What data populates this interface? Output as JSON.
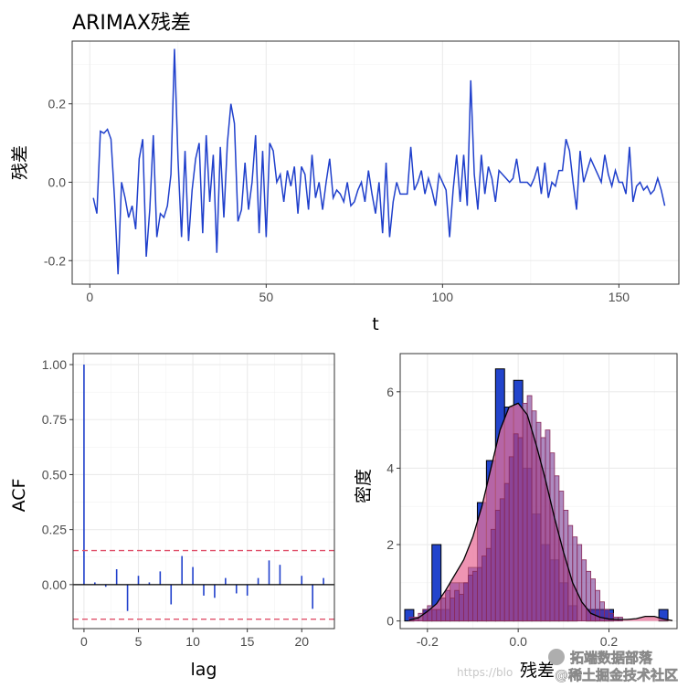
{
  "chart_data": [
    {
      "type": "line",
      "title": "ARIMAX残差",
      "xlabel": "t",
      "ylabel": "残差",
      "xlim": [
        -5,
        167
      ],
      "ylim": [
        -0.26,
        0.36
      ],
      "xticks": [
        0,
        50,
        100,
        150
      ],
      "yticks": [
        -0.2,
        0.0,
        0.2
      ],
      "ytick_labels": [
        "-0.2",
        "0.0",
        "0.2"
      ],
      "grid": true,
      "color": "#2040cc",
      "y": [
        -0.04,
        -0.08,
        0.13,
        0.125,
        0.135,
        0.11,
        -0.04,
        -0.235,
        0.0,
        -0.04,
        -0.09,
        -0.06,
        -0.12,
        0.06,
        0.11,
        -0.19,
        -0.07,
        0.12,
        -0.14,
        -0.08,
        -0.09,
        -0.06,
        0.02,
        0.34,
        0.06,
        -0.14,
        0.08,
        -0.15,
        -0.02,
        0.06,
        0.1,
        -0.13,
        0.12,
        -0.05,
        0.07,
        -0.18,
        0.09,
        -0.09,
        0.1,
        0.2,
        0.15,
        -0.1,
        -0.07,
        0.05,
        -0.07,
        0.0,
        0.12,
        -0.13,
        0.08,
        -0.14,
        0.1,
        0.08,
        0.0,
        0.02,
        -0.05,
        0.03,
        -0.01,
        0.04,
        -0.08,
        0.04,
        0.02,
        -0.07,
        0.07,
        -0.04,
        0.0,
        -0.07,
        0.0,
        0.06,
        -0.04,
        -0.02,
        -0.03,
        -0.05,
        0.0,
        -0.06,
        -0.05,
        -0.02,
        0.0,
        -0.05,
        0.03,
        -0.03,
        -0.08,
        0.0,
        -0.13,
        0.05,
        -0.14,
        -0.05,
        0.0,
        -0.03,
        -0.03,
        -0.03,
        0.09,
        -0.02,
        0.0,
        0.03,
        -0.03,
        0.01,
        -0.02,
        -0.06,
        0.02,
        0.0,
        -0.02,
        -0.14,
        -0.02,
        0.07,
        -0.05,
        0.07,
        -0.06,
        0.26,
        0.02,
        -0.07,
        0.07,
        -0.03,
        0.04,
        0.01,
        -0.05,
        0.03,
        0.02,
        0.01,
        0.0,
        0.01,
        0.06,
        0.0,
        0.0,
        0.0,
        -0.01,
        0.01,
        0.04,
        -0.03,
        0.05,
        -0.04,
        0.0,
        -0.01,
        0.03,
        0.03,
        0.11,
        0.08,
        0.0,
        -0.07,
        0.08,
        0.0,
        0.03,
        0.06,
        0.04,
        0.02,
        0.0,
        0.07,
        0.02,
        -0.01,
        0.03,
        0.0,
        0.0,
        -0.03,
        0.09,
        -0.05,
        -0.01,
        0.0,
        -0.02,
        -0.01,
        -0.03,
        -0.02,
        0.01,
        -0.02,
        -0.06
      ]
    },
    {
      "type": "bar",
      "subtype": "acf",
      "xlabel": "lag",
      "ylabel": "ACF",
      "xlim": [
        -1,
        23
      ],
      "ylim": [
        -0.2,
        1.05
      ],
      "xticks": [
        0,
        5,
        10,
        15,
        20
      ],
      "yticks": [
        0.0,
        0.25,
        0.5,
        0.75,
        1.0
      ],
      "ytick_labels": [
        "0.00",
        "0.25",
        "0.50",
        "0.75",
        "1.00"
      ],
      "confidence_band": [
        -0.157,
        0.155
      ],
      "band_color": "#e0506a",
      "bar_color": "#2040cc",
      "lags": [
        0,
        1,
        2,
        3,
        4,
        5,
        6,
        7,
        8,
        9,
        10,
        11,
        12,
        13,
        14,
        15,
        16,
        17,
        18,
        19,
        20,
        21,
        22
      ],
      "values": [
        1.0,
        0.01,
        -0.01,
        0.07,
        -0.12,
        0.04,
        0.01,
        0.06,
        -0.09,
        0.13,
        0.08,
        -0.05,
        -0.06,
        0.03,
        -0.04,
        -0.05,
        0.03,
        0.11,
        0.09,
        0.0,
        0.04,
        -0.11,
        0.03
      ]
    },
    {
      "type": "bar",
      "subtype": "histogram-density",
      "xlabel": "残差",
      "ylabel": "密度",
      "xlim": [
        -0.26,
        0.35
      ],
      "ylim": [
        -0.2,
        7.0
      ],
      "xticks": [
        -0.2,
        0.0,
        0.2
      ],
      "xtick_labels": [
        "-0.2",
        "0.0",
        "0.2"
      ],
      "yticks": [
        0,
        2,
        4,
        6
      ],
      "hist_fill": "#2244cc",
      "density_fill": "#e8709a",
      "density_line": "#000000",
      "bins_wide": {
        "start": -0.25,
        "width": 0.02,
        "values": [
          0.3,
          0.0,
          0.3,
          2.0,
          0.3,
          1.0,
          1.0,
          1.4,
          3.1,
          4.2,
          6.6,
          5.6,
          6.3,
          4.0,
          2.8,
          2.0,
          1.6,
          1.0,
          0.4,
          0.0,
          0.3,
          0.3,
          0.3,
          0.0,
          0.0,
          0.0,
          0.0,
          0.0,
          0.3
        ]
      },
      "bins_narrow": {
        "start": -0.24,
        "width": 0.01,
        "values": [
          0.1,
          0.1,
          0.2,
          0.3,
          0.4,
          0.3,
          0.3,
          0.6,
          0.8,
          0.6,
          0.8,
          0.7,
          1.0,
          1.2,
          1.3,
          1.4,
          1.7,
          1.9,
          2.4,
          2.9,
          3.2,
          3.6,
          4.3,
          4.9,
          4.8,
          5.7,
          5.9,
          5.5,
          5.2,
          4.8,
          5.0,
          4.4,
          3.8,
          3.4,
          2.9,
          2.5,
          2.2,
          2.0,
          1.6,
          1.3,
          1.1,
          0.8,
          0.5,
          0.3,
          0.2,
          0.1,
          0.1
        ]
      },
      "density": {
        "x": [
          -0.24,
          -0.22,
          -0.2,
          -0.18,
          -0.16,
          -0.14,
          -0.12,
          -0.1,
          -0.08,
          -0.06,
          -0.04,
          -0.02,
          0.0,
          0.02,
          0.04,
          0.06,
          0.08,
          0.1,
          0.12,
          0.14,
          0.16,
          0.18,
          0.2,
          0.22,
          0.24,
          0.26,
          0.28,
          0.3,
          0.32,
          0.34
        ],
        "y": [
          0.02,
          0.08,
          0.25,
          0.45,
          0.8,
          1.2,
          1.6,
          2.2,
          3.0,
          4.0,
          5.0,
          5.6,
          5.7,
          5.4,
          4.6,
          3.7,
          2.7,
          1.8,
          1.0,
          0.5,
          0.2,
          0.1,
          0.05,
          0.04,
          0.04,
          0.06,
          0.12,
          0.12,
          0.05,
          0.01
        ]
      }
    }
  ],
  "watermark": {
    "brand": "拓端数据部落",
    "url_fragment": "https://blo",
    "site": "@稀土掘金技术社区"
  }
}
